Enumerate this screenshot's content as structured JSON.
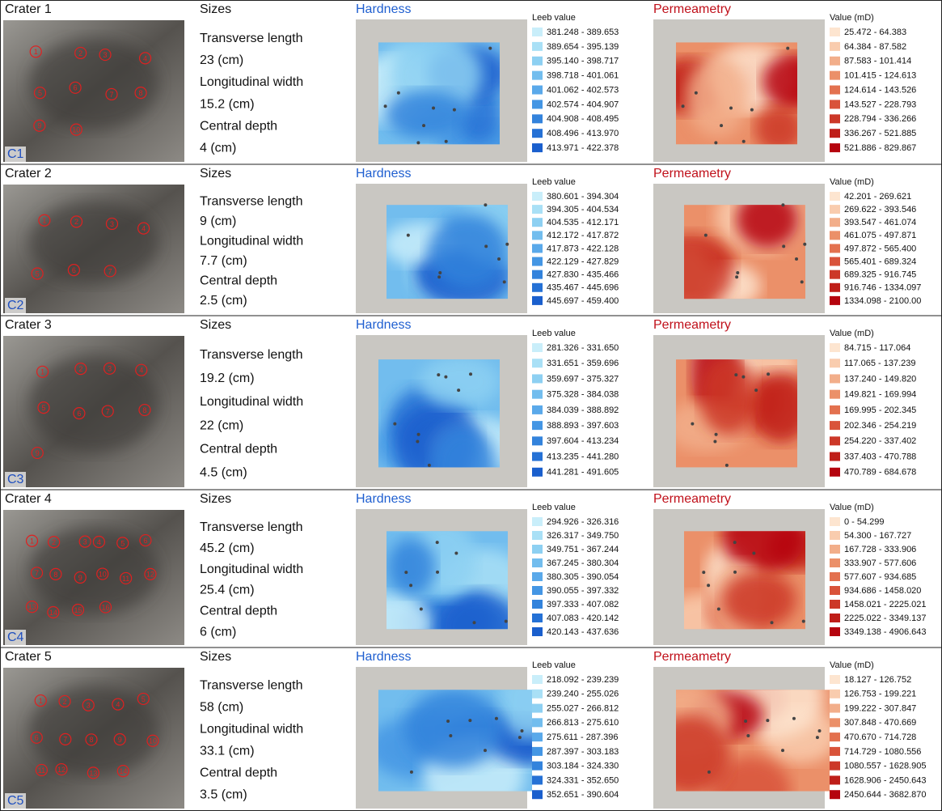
{
  "rows": [
    {
      "crater": "Crater 1",
      "label": "C1",
      "markers": [
        "1",
        "2",
        "3",
        "4",
        "5",
        "6",
        "7",
        "8",
        "9",
        "10"
      ],
      "sizes_title": "Sizes",
      "sizes": [
        "Transverse length",
        "23 (cm)",
        "Longitudinal width",
        "15.2 (cm)",
        "Central depth",
        "4 (cm)"
      ],
      "hardness_title": "Hardness",
      "hardness_legend_title": "Leeb value",
      "hardness_legend": [
        "381.248 - 389.653",
        "389.654 - 395.139",
        "395.140 - 398.717",
        "398.718 - 401.061",
        "401.062 - 402.573",
        "402.574 - 404.907",
        "404.908 - 408.495",
        "408.496 - 413.970",
        "413.971 - 422.378"
      ],
      "perm_title": "Permeametry",
      "perm_legend_title": "Value (mD)",
      "perm_legend": [
        "25.472 - 64.383",
        "64.384 - 87.582",
        "87.583 - 101.414",
        "101.415 - 124.613",
        "124.614 - 143.526",
        "143.527 - 228.793",
        "228.794 - 336.266",
        "336.267 - 521.885",
        "521.886 - 829.867"
      ]
    },
    {
      "crater": "Crater 2",
      "label": "C2",
      "markers": [
        "1",
        "2",
        "3",
        "4",
        "5",
        "6",
        "7"
      ],
      "sizes_title": "Sizes",
      "sizes": [
        "Transverse length",
        "9 (cm)",
        "Longitudinal width",
        "7.7 (cm)",
        "Central depth",
        "2.5 (cm)"
      ],
      "hardness_title": "Hardness",
      "hardness_legend_title": "Leeb value",
      "hardness_legend": [
        "380.601 - 394.304",
        "394.305 - 404.534",
        "404.535 - 412.171",
        "412.172 - 417.872",
        "417.873 - 422.128",
        "422.129 - 427.829",
        "427.830 - 435.466",
        "435.467 - 445.696",
        "445.697 - 459.400"
      ],
      "perm_title": "Permeametry",
      "perm_legend_title": "Value (mD)",
      "perm_legend": [
        "42.201 - 269.621",
        "269.622 - 393.546",
        "393.547 - 461.074",
        "461.075 - 497.871",
        "497.872 - 565.400",
        "565.401 - 689.324",
        "689.325 - 916.745",
        "916.746 - 1334.097",
        "1334.098 - 2100.00"
      ]
    },
    {
      "crater": "Crater 3",
      "label": "C3",
      "markers": [
        "1",
        "2",
        "3",
        "4",
        "5",
        "6",
        "7",
        "8",
        "9"
      ],
      "sizes_title": "Sizes",
      "sizes": [
        "Transverse length",
        "19.2 (cm)",
        "Longitudinal width",
        "22 (cm)",
        "Central depth",
        "4.5 (cm)"
      ],
      "hardness_title": "Hardness",
      "hardness_legend_title": "Leeb value",
      "hardness_legend": [
        "281.326 - 331.650",
        "331.651 - 359.696",
        "359.697 - 375.327",
        "375.328 - 384.038",
        "384.039 - 388.892",
        "388.893 - 397.603",
        "397.604 - 413.234",
        "413.235 - 441.280",
        "441.281 - 491.605"
      ],
      "perm_title": "Permeametry",
      "perm_legend_title": "Value (mD)",
      "perm_legend": [
        "84.715 - 117.064",
        "117.065 - 137.239",
        "137.240 - 149.820",
        "149.821 - 169.994",
        "169.995 - 202.345",
        "202.346 - 254.219",
        "254.220 - 337.402",
        "337.403 - 470.788",
        "470.789 - 684.678"
      ]
    },
    {
      "crater": "Crater 4",
      "label": "C4",
      "markers": [
        "1",
        "2",
        "3",
        "4",
        "5",
        "6",
        "7",
        "8",
        "9",
        "10",
        "11",
        "12",
        "13",
        "14",
        "15",
        "16"
      ],
      "sizes_title": "Sizes",
      "sizes": [
        "Transverse length",
        "45.2 (cm)",
        "Longitudinal width",
        "25.4 (cm)",
        "Central depth",
        "6 (cm)"
      ],
      "hardness_title": "Hardness",
      "hardness_legend_title": "Leeb value",
      "hardness_legend": [
        "294.926 - 326.316",
        "326.317 - 349.750",
        "349.751 - 367.244",
        "367.245 - 380.304",
        "380.305 - 390.054",
        "390.055 - 397.332",
        "397.333 - 407.082",
        "407.083 - 420.142",
        "420.143 - 437.636"
      ],
      "perm_title": "Permeametry",
      "perm_legend_title": "Value (mD)",
      "perm_legend": [
        "0 - 54.299",
        "54.300 - 167.727",
        "167.728 - 333.906",
        "333.907 - 577.606",
        "577.607 - 934.685",
        "934.686 - 1458.020",
        "1458.021 - 2225.021",
        "2225.022 - 3349.137",
        "3349.138 - 4906.643"
      ]
    },
    {
      "crater": "Crater 5",
      "label": "C5",
      "markers": [
        "1",
        "2",
        "3",
        "4",
        "5",
        "6",
        "7",
        "8",
        "9",
        "10",
        "11",
        "12",
        "13",
        "14"
      ],
      "sizes_title": "Sizes",
      "sizes": [
        "Transverse length",
        "58 (cm)",
        "Longitudinal width",
        "33.1 (cm)",
        "Central depth",
        "3.5 (cm)"
      ],
      "hardness_title": "Hardness",
      "hardness_legend_title": "Leeb value",
      "hardness_legend": [
        "218.092 - 239.239",
        "239.240 - 255.026",
        "255.027 - 266.812",
        "266.813 - 275.610",
        "275.611 - 287.396",
        "287.397 - 303.183",
        "303.184 - 324.330",
        "324.331 - 352.650",
        "352.651 - 390.604"
      ],
      "perm_title": "Permeametry",
      "perm_legend_title": "Value (mD)",
      "perm_legend": [
        "18.127 - 126.752",
        "126.753 - 199.221",
        "199.222 - 307.847",
        "307.848 - 470.669",
        "470.670 - 714.728",
        "714.729 - 1080.556",
        "1080.557 - 1628.905",
        "1628.906 - 2450.643",
        "2450.644 - 3682.870"
      ]
    }
  ]
}
